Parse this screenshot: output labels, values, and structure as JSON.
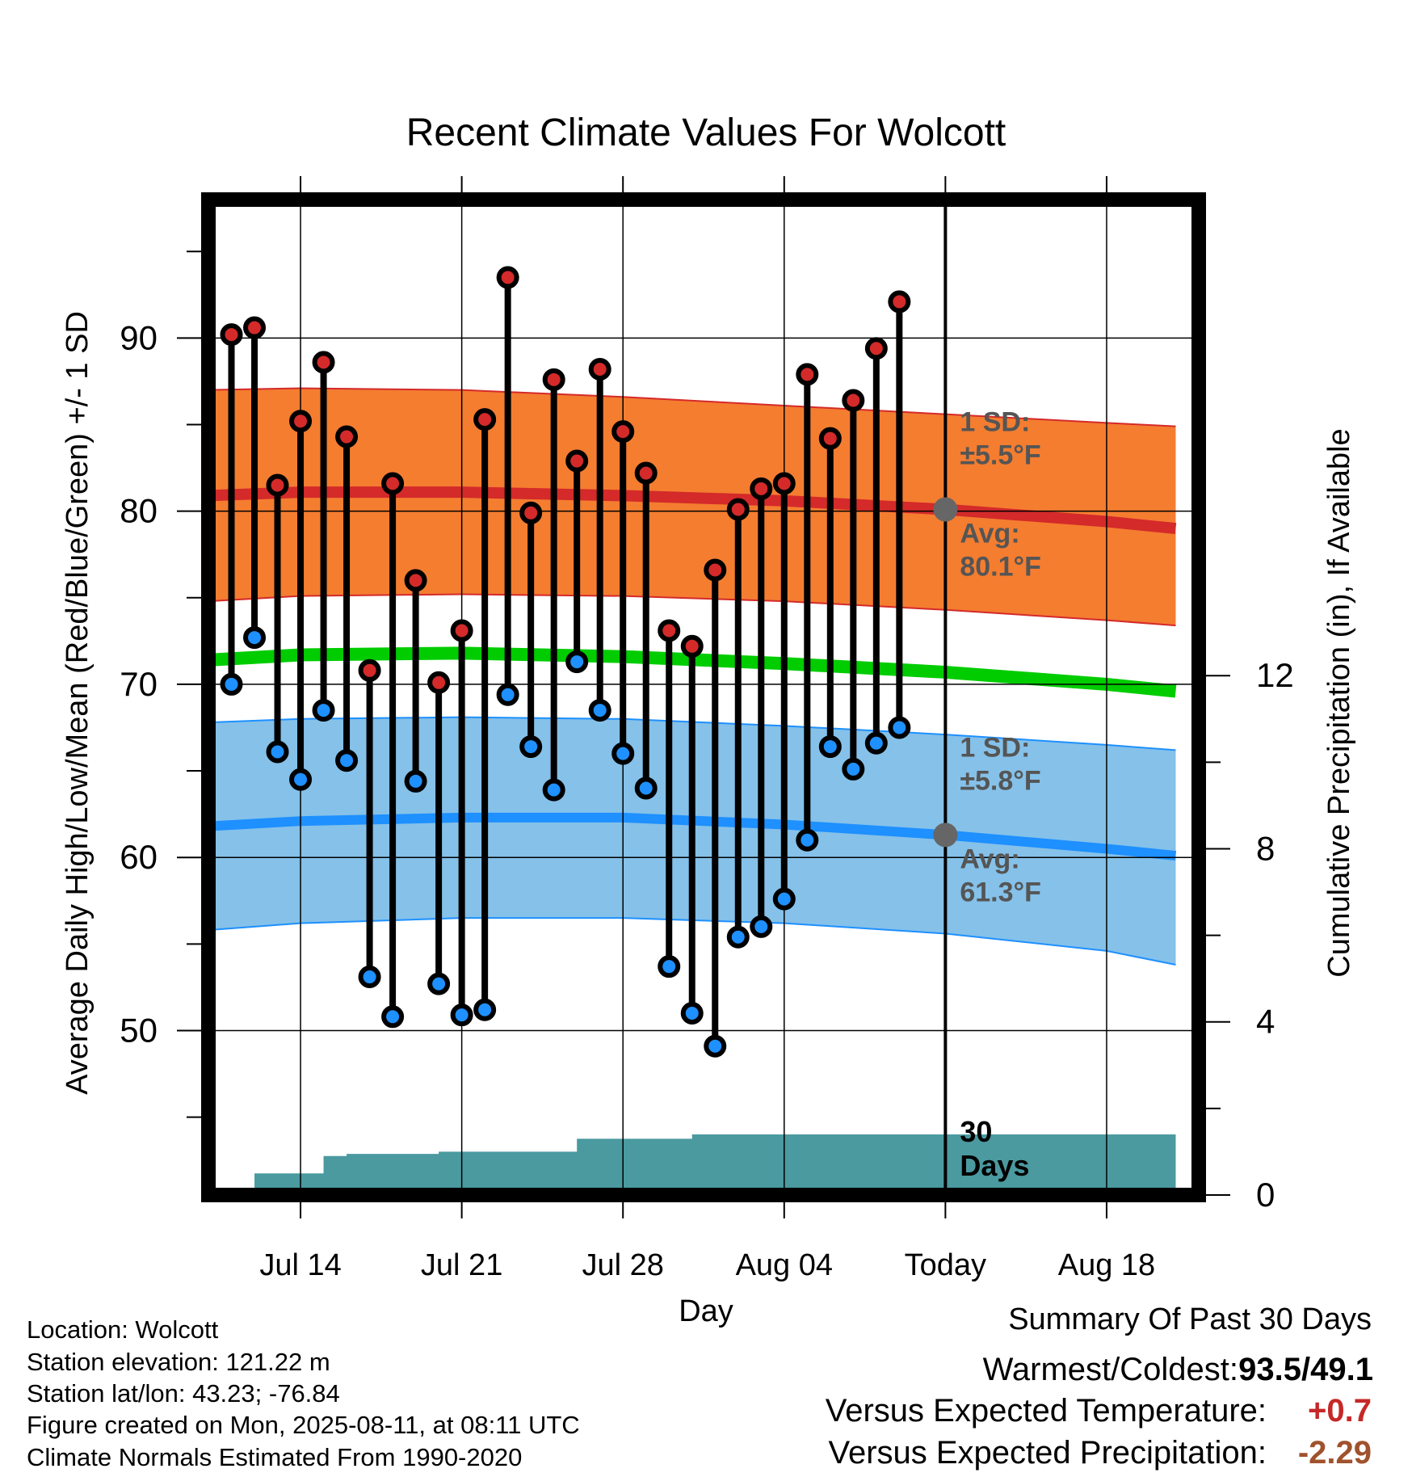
{
  "chart_data": {
    "type": "line",
    "title": "Recent Climate Values For Wolcott",
    "xlabel": "Day",
    "ylabel": "Average Daily High/Low/Mean (Red/Blue/Green) +/- 1 SD",
    "y2label": "Cumulative Precipitation (in), If Available",
    "ylim": [
      40.5,
      98
    ],
    "y_ticks": [
      "50",
      "60",
      "70",
      "80",
      "90"
    ],
    "y2lim": [
      0,
      23
    ],
    "y2_ticks": [
      "0",
      "4",
      "8",
      "12"
    ],
    "x_range": [
      "2025-07-10",
      "2025-08-22"
    ],
    "x_ticks": [
      {
        "date": "2025-07-14",
        "label": "Jul 14"
      },
      {
        "date": "2025-07-21",
        "label": "Jul 21"
      },
      {
        "date": "2025-07-28",
        "label": "Jul 28"
      },
      {
        "date": "2025-08-04",
        "label": "Aug 04"
      },
      {
        "date": "2025-08-11",
        "label": "Today"
      },
      {
        "date": "2025-08-18",
        "label": "Aug 18"
      }
    ],
    "grid": true,
    "colors": {
      "high": "#d42a2a",
      "low": "#1e90ff",
      "mean": "#00cc00",
      "high_band": "#f47d30",
      "low_band": "#85c1e9",
      "precip": "#4a9aa0",
      "marker": "#666666",
      "annotation": "#555555"
    },
    "normal_high": {
      "x": [
        "2025-07-10",
        "2025-07-14",
        "2025-07-21",
        "2025-07-28",
        "2025-08-04",
        "2025-08-11",
        "2025-08-18",
        "2025-08-21"
      ],
      "mean": [
        80.9,
        81.1,
        81.1,
        80.9,
        80.6,
        80.1,
        79.4,
        79.0
      ],
      "upper": [
        87.0,
        87.1,
        87.0,
        86.6,
        86.1,
        85.6,
        85.1,
        84.9
      ],
      "lower": [
        74.8,
        75.1,
        75.2,
        75.1,
        74.8,
        74.3,
        73.7,
        73.4
      ]
    },
    "normal_low": {
      "x": [
        "2025-07-10",
        "2025-07-14",
        "2025-07-21",
        "2025-07-28",
        "2025-08-04",
        "2025-08-11",
        "2025-08-18",
        "2025-08-21"
      ],
      "mean": [
        61.8,
        62.1,
        62.3,
        62.3,
        61.9,
        61.3,
        60.5,
        60.1
      ],
      "upper": [
        67.8,
        68.0,
        68.1,
        68.0,
        67.6,
        67.1,
        66.5,
        66.2
      ],
      "lower": [
        55.8,
        56.2,
        56.5,
        56.5,
        56.2,
        55.6,
        54.6,
        53.8
      ]
    },
    "normal_mean": {
      "x": [
        "2025-07-10",
        "2025-07-14",
        "2025-07-21",
        "2025-07-28",
        "2025-08-04",
        "2025-08-11",
        "2025-08-18",
        "2025-08-21"
      ],
      "values": [
        71.4,
        71.7,
        71.8,
        71.6,
        71.2,
        70.7,
        70.0,
        69.6
      ]
    },
    "daily": {
      "x": [
        "2025-07-11",
        "2025-07-12",
        "2025-07-13",
        "2025-07-14",
        "2025-07-15",
        "2025-07-16",
        "2025-07-17",
        "2025-07-18",
        "2025-07-19",
        "2025-07-20",
        "2025-07-21",
        "2025-07-22",
        "2025-07-23",
        "2025-07-24",
        "2025-07-25",
        "2025-07-26",
        "2025-07-27",
        "2025-07-28",
        "2025-07-29",
        "2025-07-30",
        "2025-07-31",
        "2025-08-01",
        "2025-08-02",
        "2025-08-03",
        "2025-08-04",
        "2025-08-05",
        "2025-08-06",
        "2025-08-07",
        "2025-08-08",
        "2025-08-09"
      ],
      "high": [
        90.2,
        90.6,
        81.5,
        85.2,
        88.6,
        84.3,
        70.8,
        81.6,
        76.0,
        70.1,
        73.1,
        85.3,
        93.5,
        79.9,
        87.6,
        82.9,
        88.2,
        84.6,
        82.2,
        73.1,
        72.2,
        76.6,
        80.1,
        81.3,
        81.6,
        87.9,
        84.2,
        86.4,
        89.4,
        92.1
      ],
      "low": [
        70.0,
        72.7,
        66.1,
        64.5,
        68.5,
        65.6,
        53.1,
        50.8,
        64.4,
        52.7,
        50.9,
        51.2,
        69.4,
        66.4,
        63.9,
        71.3,
        68.5,
        66.0,
        64.0,
        53.7,
        51.0,
        49.1,
        55.4,
        56.0,
        57.6,
        61.0,
        66.4,
        65.1,
        66.6,
        67.5
      ]
    },
    "cumulative_precip": {
      "x": [
        "2025-07-11",
        "2025-07-12",
        "2025-07-13",
        "2025-07-14",
        "2025-07-15",
        "2025-07-16",
        "2025-07-19",
        "2025-07-20",
        "2025-07-25",
        "2025-07-26",
        "2025-07-30",
        "2025-07-31",
        "2025-08-11",
        "2025-08-21"
      ],
      "values": [
        0,
        0.5,
        0.5,
        0.5,
        0.9,
        0.95,
        0.95,
        1.0,
        1.0,
        1.3,
        1.3,
        1.4,
        1.4,
        1.4
      ]
    },
    "annotations": {
      "high_sd_label": "1 SD:",
      "high_sd_value": "±5.5°F",
      "high_avg_label": "Avg:",
      "high_avg_value": "80.1°F",
      "high_avg": 80.1,
      "low_sd_label": "1 SD:",
      "low_sd_value": "±5.8°F",
      "low_avg_label": "Avg:",
      "low_avg_value": "61.3°F",
      "low_avg": 61.3,
      "days_label_1": "30",
      "days_label_2": "Days"
    }
  },
  "info": {
    "location": "Location: Wolcott",
    "elevation": "Station elevation: 121.22 m",
    "latlon": "Station lat/lon: 43.23; -76.84",
    "created": "Figure created on Mon, 2025-08-11, at 08:11 UTC",
    "normals": "Climate Normals Estimated From 1990-2020"
  },
  "summary": {
    "title": "Summary Of Past 30 Days",
    "warm_cold_label": "Warmest/Coldest:",
    "warm_cold_value": "93.5/49.1",
    "temp_label": "Versus Expected Temperature:",
    "temp_value": "+0.7",
    "precip_label": "Versus Expected Precipitation:",
    "precip_value": "-2.29",
    "temp_color": "#c62828",
    "precip_color": "#a0522d"
  }
}
